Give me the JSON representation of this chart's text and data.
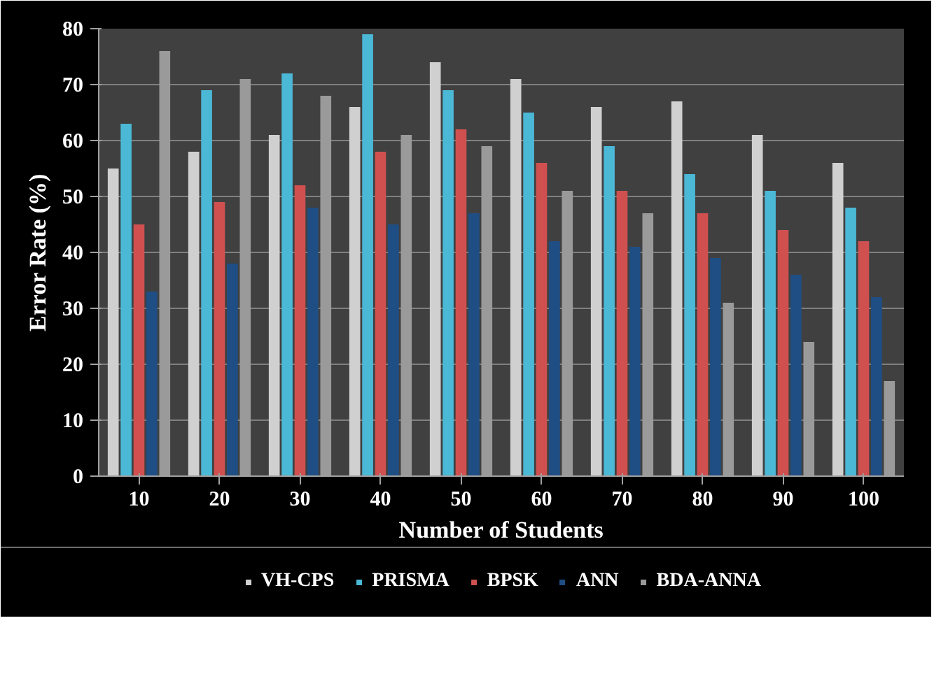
{
  "chart_data": {
    "type": "bar",
    "xlabel": "Number of Students",
    "ylabel": "Error Rate (%)",
    "categories": [
      "10",
      "20",
      "30",
      "40",
      "50",
      "60",
      "70",
      "80",
      "90",
      "100"
    ],
    "series": [
      {
        "name": "VH-CPS",
        "color": "#d0d0d0",
        "values": [
          55,
          58,
          61,
          66,
          74,
          71,
          66,
          67,
          61,
          56
        ]
      },
      {
        "name": "PRISMA",
        "color": "#4bb8d6",
        "values": [
          63,
          69,
          72,
          79,
          69,
          65,
          59,
          54,
          51,
          48
        ]
      },
      {
        "name": "BPSK",
        "color": "#d05050",
        "values": [
          45,
          49,
          52,
          58,
          62,
          56,
          51,
          47,
          44,
          42
        ]
      },
      {
        "name": "ANN",
        "color": "#1f4e85",
        "values": [
          33,
          38,
          48,
          45,
          47,
          42,
          41,
          39,
          36,
          32
        ]
      },
      {
        "name": "BDA-ANNA",
        "color": "#9a9a9a",
        "values": [
          76,
          71,
          68,
          61,
          59,
          51,
          47,
          31,
          24,
          17
        ]
      }
    ],
    "ylim": [
      0,
      80
    ],
    "yticks": [
      0,
      10,
      20,
      30,
      40,
      50,
      60,
      70,
      80
    ],
    "grid": "y",
    "legend": "bottom"
  }
}
